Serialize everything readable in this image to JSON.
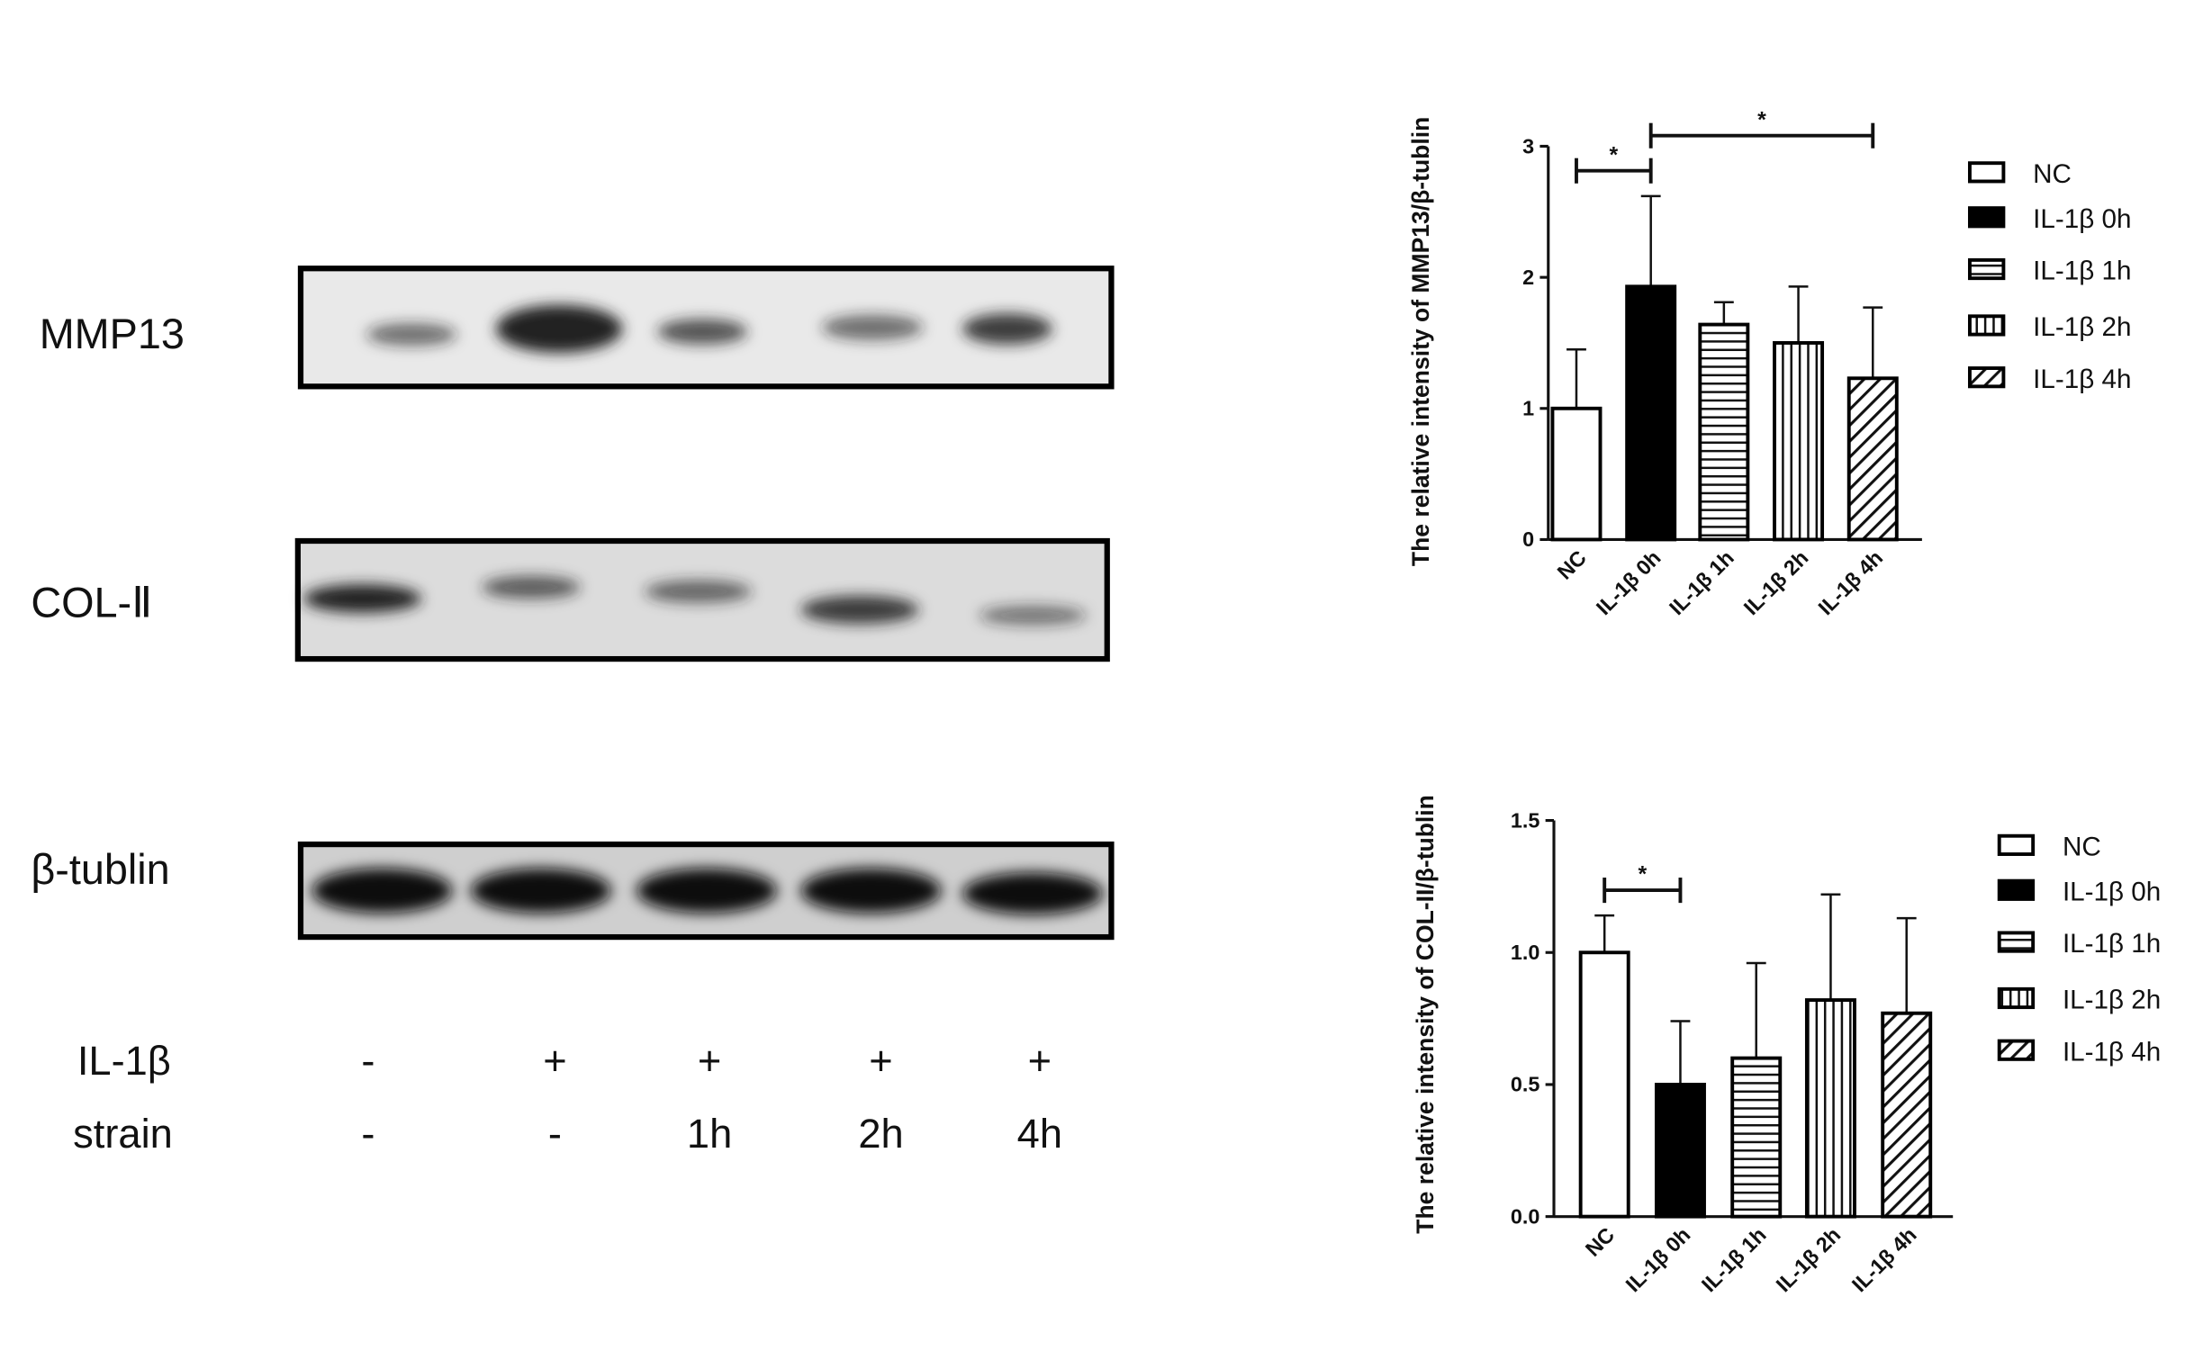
{
  "blot": {
    "rows": [
      "MMP13",
      "COL-Ⅱ",
      "β-tublin"
    ],
    "conditions": [
      {
        "label": "IL-1β",
        "values": [
          "-",
          "+",
          "+",
          "+",
          "+"
        ]
      },
      {
        "label": "strain",
        "values": [
          "-",
          "-",
          "1h",
          "2h",
          "4h"
        ]
      }
    ]
  },
  "chart_data": [
    {
      "type": "bar",
      "y_label": "The relative intensity of MMP13/β-tublin",
      "categories": [
        "NC",
        "IL-1β 0h",
        "IL-1β 1h",
        "IL-1β 2h",
        "IL-1β 4h"
      ],
      "values": [
        1.0,
        1.93,
        1.64,
        1.5,
        1.23
      ],
      "errors": [
        0.45,
        0.69,
        0.17,
        0.43,
        0.54
      ],
      "fills": [
        "white",
        "black",
        "hlines",
        "vlines",
        "diagonal"
      ],
      "ylim": [
        0,
        3
      ],
      "yticks": [
        0,
        1,
        2,
        3
      ],
      "brackets": [
        {
          "between": [
            "NC",
            "IL-1β 0h"
          ],
          "text": "*"
        },
        {
          "between": [
            "IL-1β 0h",
            "IL-1β 4h"
          ],
          "text": "*"
        }
      ]
    },
    {
      "type": "bar",
      "y_label": "The relative intensity of COL-II/β-tublin",
      "categories": [
        "NC",
        "IL-1β 0h",
        "IL-1β 1h",
        "IL-1β 2h",
        "IL-1β 4h"
      ],
      "values": [
        1.0,
        0.5,
        0.6,
        0.82,
        0.77
      ],
      "errors": [
        0.14,
        0.24,
        0.36,
        0.4,
        0.36
      ],
      "fills": [
        "white",
        "black",
        "hlines",
        "vlines",
        "diagonal"
      ],
      "ylim": [
        0,
        1.5
      ],
      "yticks": [
        {
          "value": 0,
          "label": "0.0"
        },
        {
          "value": 0.5,
          "label": "0.5"
        },
        {
          "value": 1,
          "label": "1.0"
        },
        {
          "value": 1.5,
          "label": "1.5"
        }
      ],
      "brackets": [
        {
          "between": [
            "NC",
            "IL-1β 0h"
          ],
          "text": "*"
        }
      ]
    }
  ]
}
